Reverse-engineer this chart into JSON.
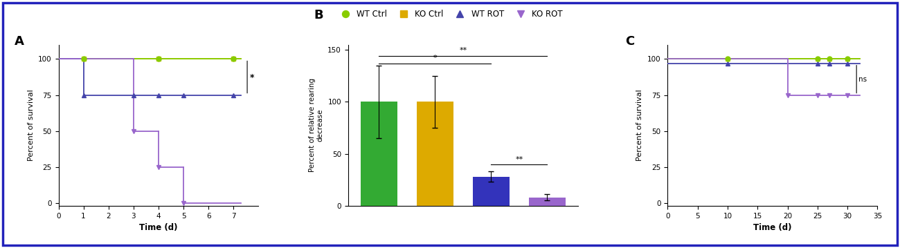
{
  "fig_width": 13.0,
  "fig_height": 3.59,
  "bg_color": "#ffffff",
  "border_color": "#2222bb",
  "panel_A": {
    "label": "A",
    "xlim": [
      0,
      8
    ],
    "ylim": [
      -2,
      110
    ],
    "xticks": [
      0,
      1,
      2,
      3,
      4,
      5,
      6,
      7
    ],
    "yticks": [
      0,
      25,
      50,
      75,
      100
    ],
    "xlabel": "Time (d)",
    "ylabel": "Percent of survival"
  },
  "panel_B": {
    "label": "B",
    "values": [
      100,
      100,
      28,
      8
    ],
    "errors": [
      35,
      25,
      5,
      3
    ],
    "bar_colors": [
      "#33aa33",
      "#ddaa00",
      "#3333bb",
      "#9966cc"
    ],
    "ylim": [
      0,
      155
    ],
    "yticks": [
      0,
      50,
      100,
      150
    ],
    "ylabel": "Percent of relative rearing\ndecrease"
  },
  "panel_C": {
    "label": "C",
    "xlim": [
      0,
      35
    ],
    "ylim": [
      -2,
      110
    ],
    "xticks": [
      0,
      5,
      10,
      15,
      20,
      25,
      30,
      35
    ],
    "yticks": [
      0,
      25,
      50,
      75,
      100
    ],
    "xlabel": "Time (d)",
    "ylabel": "Percent of survival"
  },
  "legend": {
    "wt_ctrl_color": "#88cc00",
    "ko_ctrl_color": "#ddaa00",
    "wt_rot_color": "#4444aa",
    "ko_rot_color": "#9966cc",
    "wt_ctrl_marker": "o",
    "ko_ctrl_marker": "s",
    "wt_rot_marker": "^",
    "ko_rot_marker": "v",
    "labels": [
      "WT Ctrl",
      "KO Ctrl",
      "WT ROT",
      "KO ROT"
    ]
  }
}
